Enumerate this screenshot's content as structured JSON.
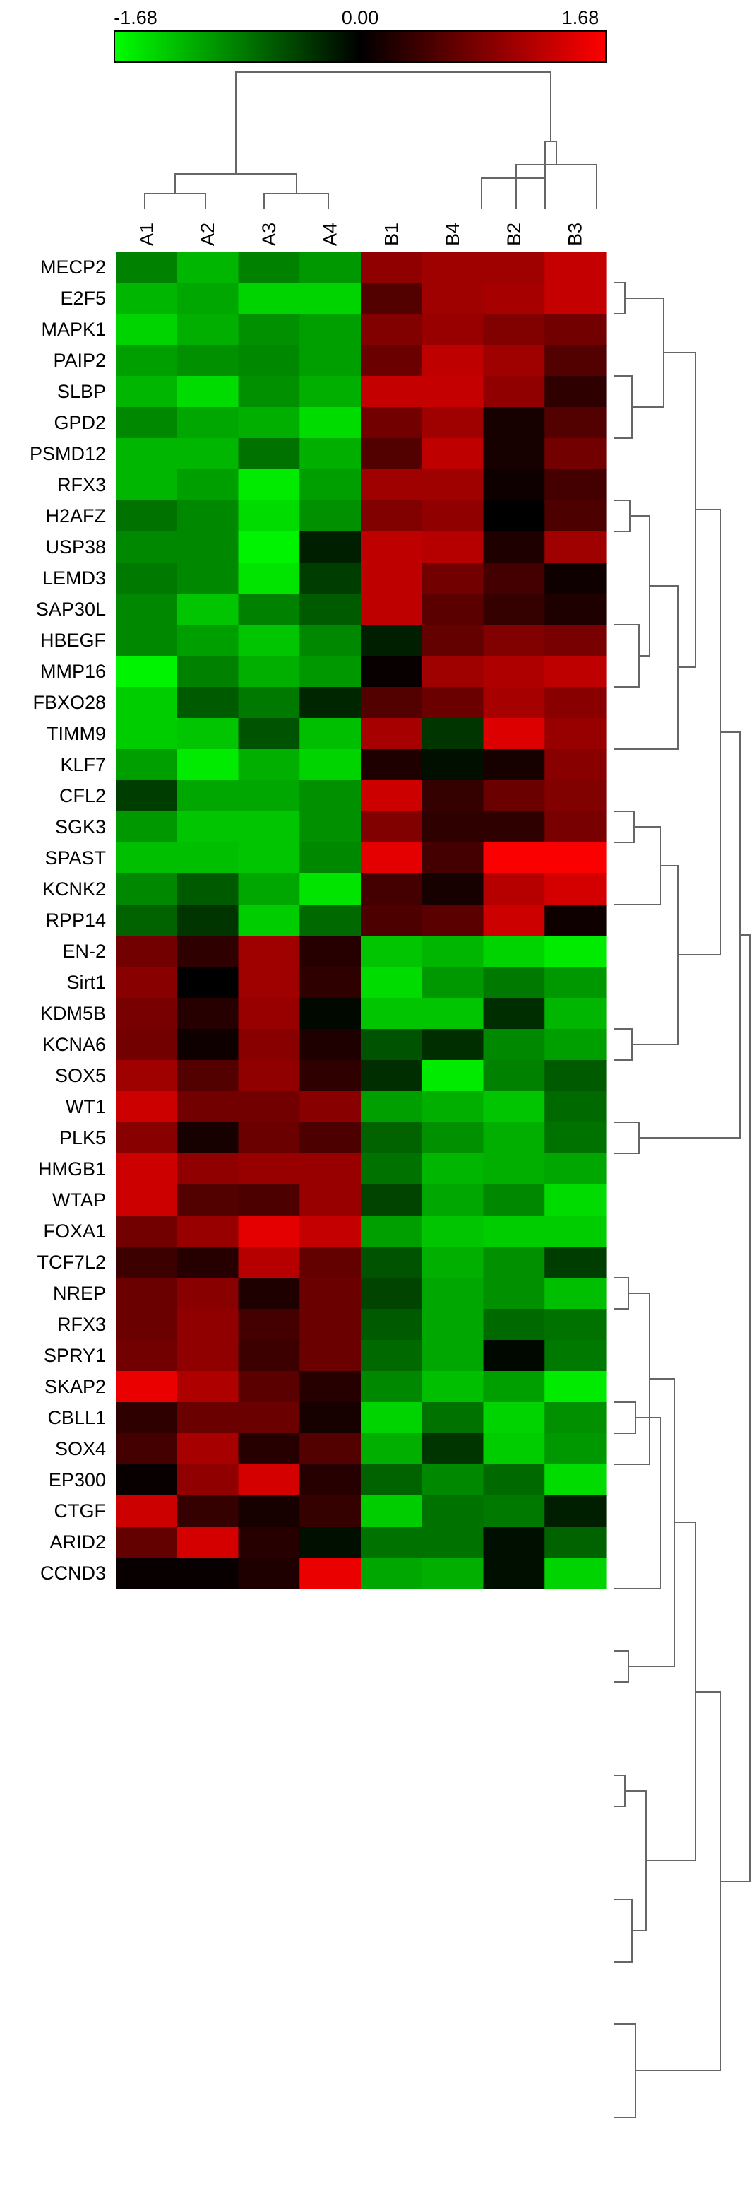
{
  "chart_data": {
    "type": "heatmap",
    "title": "",
    "xlabel": "",
    "ylabel": "",
    "colorbar": {
      "min_label": "-1.68",
      "mid_label": "0.00",
      "max_label": "1.68",
      "range": [
        -1.68,
        1.68
      ],
      "low_color": "#00ff00",
      "mid_color": "#000000",
      "high_color": "#ff0000"
    },
    "columns": [
      "A1",
      "A2",
      "A3",
      "A4",
      "B1",
      "B4",
      "B2",
      "B3"
    ],
    "rows": [
      "MECP2",
      "E2F5",
      "MAPK1",
      "PAIP2",
      "SLBP",
      "GPD2",
      "PSMD12",
      "RFX3",
      "H2AFZ",
      "USP38",
      "LEMD3",
      "SAP30L",
      "HBEGF",
      "MMP16",
      "FBXO28",
      "TIMM9",
      "KLF7",
      "CFL2",
      "SGK3",
      "SPAST",
      "KCNK2",
      "RPP14",
      "EN-2",
      "Sirt1",
      "KDM5B",
      "KCNA6",
      "SOX5",
      "WT1",
      "PLK5",
      "HMGB1",
      "WTAP",
      "FOXA1",
      "TCF7L2",
      "NREP",
      "RFX3",
      "SPRY1",
      "SKAP2",
      "CBLL1",
      "SOX4",
      "EP300",
      "CTGF",
      "ARID2",
      "CCND3"
    ],
    "values": [
      [
        -0.85,
        -1.2,
        -0.85,
        -1.0,
        0.95,
        1.05,
        1.05,
        1.3
      ],
      [
        -1.2,
        -1.1,
        -1.4,
        -1.4,
        0.55,
        1.05,
        1.1,
        1.3
      ],
      [
        -1.4,
        -1.15,
        -0.95,
        -1.05,
        0.85,
        1.0,
        0.85,
        0.75
      ],
      [
        -1.05,
        -0.95,
        -0.9,
        -1.05,
        0.7,
        1.25,
        1.05,
        0.55
      ],
      [
        -1.2,
        -1.45,
        -0.95,
        -1.15,
        1.3,
        1.3,
        0.95,
        0.3
      ],
      [
        -0.9,
        -1.1,
        -1.15,
        -1.45,
        0.75,
        1.05,
        0.15,
        0.55
      ],
      [
        -1.2,
        -1.2,
        -0.75,
        -1.15,
        0.55,
        1.25,
        0.15,
        0.75
      ],
      [
        -1.2,
        -1.05,
        -1.55,
        -1.05,
        1.05,
        1.05,
        0.1,
        0.45
      ],
      [
        -0.75,
        -0.9,
        -1.45,
        -0.95,
        0.85,
        0.95,
        0.0,
        0.5
      ],
      [
        -0.9,
        -0.9,
        -1.6,
        -0.2,
        1.25,
        1.2,
        0.2,
        1.05
      ],
      [
        -0.8,
        -0.9,
        -1.5,
        -0.4,
        1.25,
        0.75,
        0.45,
        0.1
      ],
      [
        -0.9,
        -1.3,
        -0.85,
        -0.6,
        1.25,
        0.6,
        0.35,
        0.2
      ],
      [
        -0.9,
        -1.05,
        -1.3,
        -0.9,
        -0.2,
        0.65,
        0.85,
        0.8
      ],
      [
        -1.6,
        -0.85,
        -1.15,
        -1.0,
        0.05,
        1.05,
        1.15,
        1.25
      ],
      [
        -1.35,
        -0.6,
        -0.8,
        -0.25,
        0.55,
        0.7,
        1.1,
        0.9
      ],
      [
        -1.35,
        -1.3,
        -0.55,
        -1.25,
        1.1,
        -0.35,
        1.45,
        1.0
      ],
      [
        -1.05,
        -1.55,
        -1.15,
        -1.4,
        0.2,
        -0.1,
        0.15,
        0.9
      ],
      [
        -0.4,
        -1.1,
        -1.1,
        -0.95,
        1.35,
        0.35,
        0.7,
        0.85
      ],
      [
        -1.0,
        -1.3,
        -1.3,
        -0.95,
        0.85,
        0.3,
        0.3,
        0.8
      ],
      [
        -1.25,
        -1.25,
        -1.3,
        -0.9,
        1.5,
        0.45,
        1.65,
        1.65
      ],
      [
        -0.9,
        -0.6,
        -1.1,
        -1.5,
        0.45,
        0.15,
        1.2,
        1.4
      ],
      [
        -0.65,
        -0.35,
        -1.35,
        -0.7,
        0.5,
        0.6,
        1.35,
        0.1
      ],
      [
        0.75,
        0.3,
        1.05,
        0.25,
        -1.3,
        -1.2,
        -1.4,
        -1.55
      ],
      [
        0.9,
        0.0,
        1.05,
        0.3,
        -1.45,
        -1.0,
        -0.8,
        -1.0
      ],
      [
        0.8,
        0.25,
        1.0,
        -0.05,
        -1.3,
        -1.3,
        -0.3,
        -1.2
      ],
      [
        0.75,
        0.1,
        0.9,
        0.2,
        -0.55,
        -0.3,
        -0.9,
        -1.05
      ],
      [
        1.05,
        0.55,
        0.95,
        0.3,
        -0.3,
        -1.55,
        -0.85,
        -0.6
      ],
      [
        1.35,
        0.75,
        0.75,
        0.9,
        -1.05,
        -1.15,
        -1.3,
        -0.7
      ],
      [
        0.9,
        0.15,
        0.7,
        0.5,
        -0.65,
        -0.95,
        -1.15,
        -0.75
      ],
      [
        1.35,
        0.95,
        1.0,
        1.0,
        -0.75,
        -1.2,
        -1.15,
        -1.1
      ],
      [
        1.35,
        0.55,
        0.5,
        1.0,
        -0.45,
        -1.1,
        -0.9,
        -1.45
      ],
      [
        0.75,
        1.0,
        1.5,
        1.3,
        -1.05,
        -1.3,
        -1.35,
        -1.35
      ],
      [
        0.4,
        0.25,
        1.2,
        0.65,
        -0.55,
        -1.15,
        -0.95,
        -0.4
      ],
      [
        0.7,
        0.9,
        0.2,
        0.7,
        -0.45,
        -1.1,
        -0.95,
        -1.25
      ],
      [
        0.7,
        0.95,
        0.45,
        0.7,
        -0.6,
        -1.1,
        -0.7,
        -0.75
      ],
      [
        0.75,
        0.95,
        0.4,
        0.7,
        -0.7,
        -1.1,
        -0.05,
        -0.8
      ],
      [
        1.55,
        1.15,
        0.6,
        0.25,
        -0.9,
        -1.25,
        -1.05,
        -1.55
      ],
      [
        0.3,
        0.7,
        0.7,
        0.15,
        -1.4,
        -0.75,
        -1.4,
        -0.95
      ],
      [
        0.45,
        1.1,
        0.25,
        0.55,
        -1.15,
        -0.35,
        -1.35,
        -1.0
      ],
      [
        0.05,
        0.95,
        1.4,
        0.25,
        -0.65,
        -0.9,
        -0.7,
        -1.45
      ],
      [
        1.35,
        0.35,
        0.15,
        0.35,
        -1.35,
        -0.75,
        -0.8,
        -0.2
      ],
      [
        0.65,
        1.4,
        0.25,
        -0.1,
        -0.75,
        -0.75,
        -0.1,
        -0.65
      ],
      [
        0.05,
        0.05,
        0.2,
        1.55,
        -1.1,
        -1.15,
        -0.1,
        -1.4
      ]
    ],
    "legend_position": "top"
  }
}
